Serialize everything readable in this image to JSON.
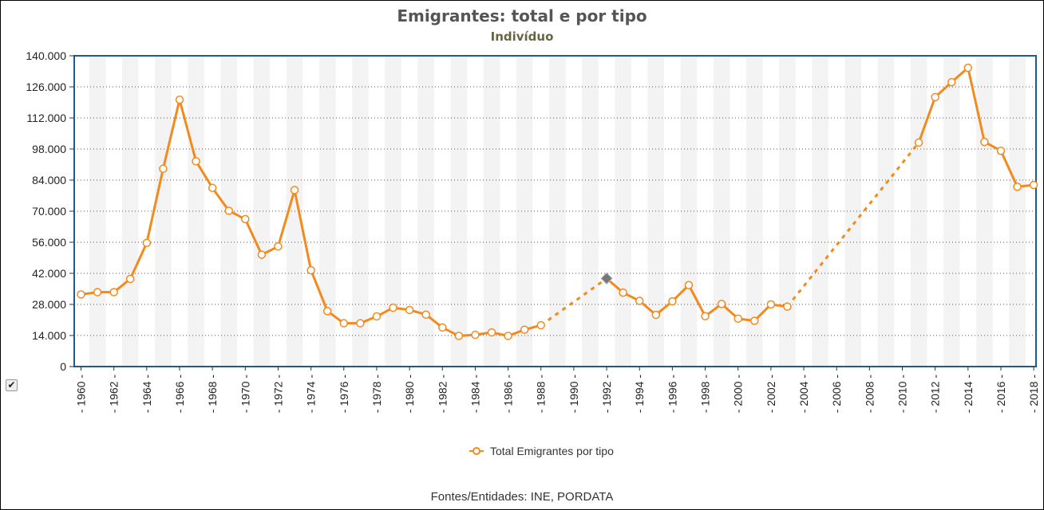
{
  "header": {
    "title": "Emigrantes: total e por tipo",
    "subtitle": "Indivíduo"
  },
  "source_text": "Fontes/Entidades: INE, PORDATA",
  "checkbox": {
    "checked": true,
    "glyph": "✔"
  },
  "colors": {
    "series": "#F28A1E",
    "plot_border": "#1F5A8A",
    "stripe": "#F3F3F3",
    "highlight_marker": "#777777"
  },
  "chart_data": {
    "type": "line",
    "title": "Emigrantes: total e por tipo",
    "subtitle": "Indivíduo",
    "xlim": [
      1960,
      2018
    ],
    "ylim": [
      0,
      140000
    ],
    "yticks": [
      0,
      14000,
      28000,
      42000,
      56000,
      70000,
      84000,
      98000,
      112000,
      126000,
      140000
    ],
    "ytick_labels": [
      "0",
      "14.000",
      "28.000",
      "42.000",
      "56.000",
      "70.000",
      "84.000",
      "98.000",
      "112.000",
      "126.000",
      "140.000"
    ],
    "xtick_labels": [
      "1960",
      "1962",
      "1964",
      "1966",
      "1968",
      "1970",
      "1972",
      "1974",
      "1976",
      "1978",
      "1980",
      "1982",
      "1984",
      "1986",
      "1988",
      "1990",
      "1992",
      "1994",
      "1996",
      "1998",
      "2000",
      "2002",
      "2004",
      "2006",
      "2008",
      "2010",
      "2012",
      "2014",
      "2016",
      "2018"
    ],
    "grid": true,
    "legend_position": "bottom-center",
    "series": [
      {
        "name": "Total Emigrantes por tipo",
        "points": [
          [
            1960,
            32500
          ],
          [
            1961,
            33500
          ],
          [
            1962,
            33500
          ],
          [
            1963,
            39500
          ],
          [
            1964,
            55700
          ],
          [
            1965,
            89100
          ],
          [
            1966,
            120200
          ],
          [
            1967,
            92500
          ],
          [
            1968,
            80500
          ],
          [
            1969,
            70200
          ],
          [
            1970,
            66400
          ],
          [
            1971,
            50400
          ],
          [
            1972,
            54100
          ],
          [
            1973,
            79500
          ],
          [
            1974,
            43400
          ],
          [
            1975,
            25000
          ],
          [
            1976,
            19500
          ],
          [
            1977,
            19500
          ],
          [
            1978,
            22600
          ],
          [
            1979,
            26500
          ],
          [
            1980,
            25500
          ],
          [
            1981,
            23400
          ],
          [
            1982,
            17600
          ],
          [
            1983,
            13800
          ],
          [
            1984,
            14300
          ],
          [
            1985,
            15400
          ],
          [
            1986,
            13800
          ],
          [
            1987,
            16600
          ],
          [
            1988,
            18600
          ],
          [
            1992,
            39700
          ],
          [
            1993,
            33300
          ],
          [
            1994,
            29600
          ],
          [
            1995,
            23300
          ],
          [
            1996,
            29400
          ],
          [
            1997,
            36700
          ],
          [
            1998,
            22700
          ],
          [
            1999,
            28200
          ],
          [
            2000,
            21600
          ],
          [
            2001,
            20600
          ],
          [
            2002,
            28000
          ],
          [
            2003,
            27000
          ],
          [
            2011,
            100900
          ],
          [
            2012,
            121400
          ],
          [
            2013,
            128100
          ],
          [
            2014,
            134600
          ],
          [
            2015,
            101200
          ],
          [
            2016,
            97200
          ],
          [
            2017,
            81000
          ],
          [
            2018,
            81800
          ]
        ]
      }
    ]
  }
}
